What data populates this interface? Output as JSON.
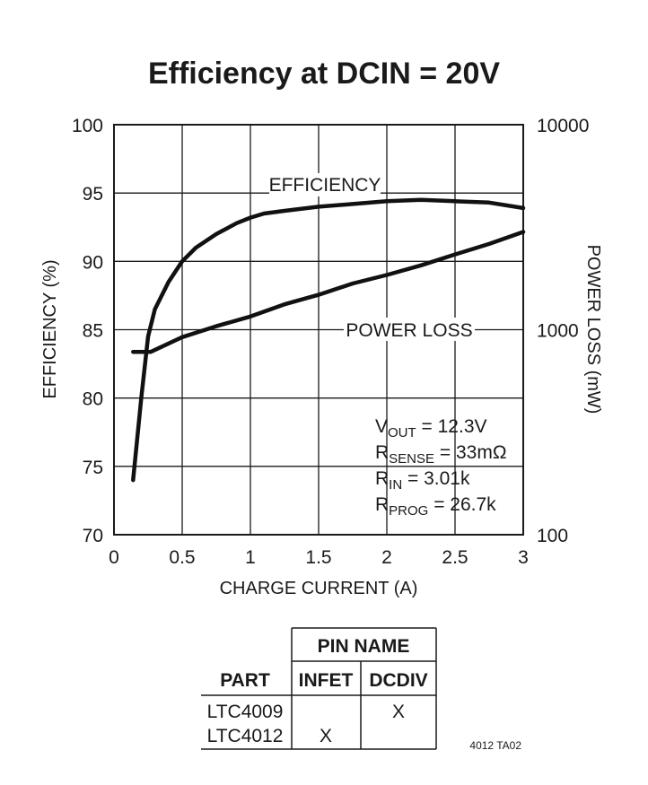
{
  "chart_data": {
    "type": "line",
    "title": "Efficiency at DCIN = 20V",
    "xlabel": "CHARGE CURRENT (A)",
    "ylabel": "EFFICIENCY (%)",
    "y2label": "POWER LOSS (mW)",
    "xlim": [
      0,
      3
    ],
    "ylim": [
      70,
      100
    ],
    "y2lim": [
      100,
      10000
    ],
    "y2_scale": "log",
    "grid": true,
    "x_ticks": [
      "0",
      "0.5",
      "1",
      "1.5",
      "2",
      "2.5",
      "3"
    ],
    "y_ticks": [
      "70",
      "75",
      "80",
      "85",
      "90",
      "95",
      "100"
    ],
    "y2_ticks": [
      "100",
      "1000",
      "10000"
    ],
    "series": [
      {
        "name": "EFFICIENCY",
        "axis": "left",
        "x": [
          0.14,
          0.2,
          0.25,
          0.3,
          0.4,
          0.5,
          0.6,
          0.75,
          0.9,
          1.0,
          1.1,
          1.25,
          1.5,
          1.75,
          2.0,
          2.25,
          2.5,
          2.75,
          3.0
        ],
        "y": [
          74.0,
          80.0,
          84.5,
          86.5,
          88.5,
          90.0,
          91.0,
          92.0,
          92.8,
          93.2,
          93.5,
          93.7,
          94.0,
          94.2,
          94.4,
          94.5,
          94.4,
          94.3,
          93.9
        ]
      },
      {
        "name": "POWER LOSS",
        "axis": "right",
        "x": [
          0.14,
          0.27,
          0.5,
          0.75,
          1.0,
          1.25,
          1.5,
          1.75,
          2.0,
          2.25,
          2.5,
          2.75,
          3.0
        ],
        "y": [
          780,
          780,
          920,
          1040,
          1160,
          1330,
          1480,
          1680,
          1850,
          2060,
          2330,
          2620,
          3000
        ]
      }
    ],
    "annotations": {
      "efficiency_label": "EFFICIENCY",
      "power_loss_label": "POWER LOSS"
    },
    "conditions": [
      {
        "main": "V",
        "sub": "OUT",
        "rest": " = 12.3V"
      },
      {
        "main": "R",
        "sub": "SENSE",
        "rest": " = 33mΩ"
      },
      {
        "main": "R",
        "sub": "IN",
        "rest": " = 3.01k"
      },
      {
        "main": "R",
        "sub": "PROG",
        "rest": " = 26.7k"
      }
    ]
  },
  "table": {
    "group_header": "PIN NAME",
    "col_part": "PART",
    "col_infet": "INFET",
    "col_dcdiv": "DCDIV",
    "rows": [
      {
        "part": "LTC4009",
        "infet": "",
        "dcdiv": "X"
      },
      {
        "part": "LTC4012",
        "infet": "X",
        "dcdiv": ""
      }
    ]
  },
  "figure_ref": "4012 TA02"
}
